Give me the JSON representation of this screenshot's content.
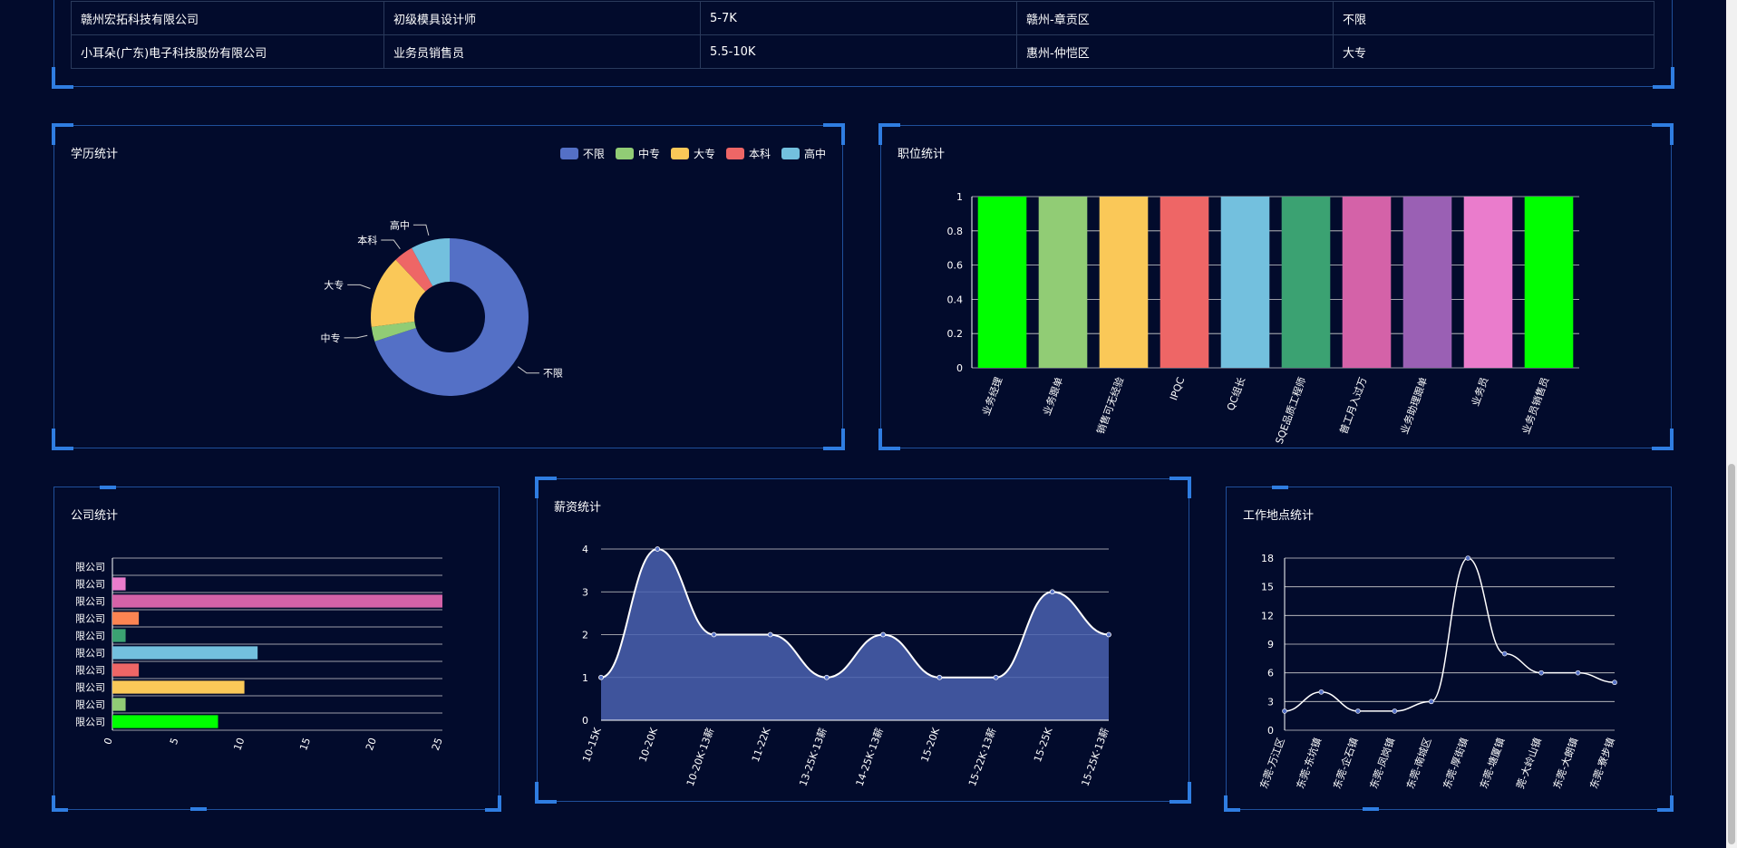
{
  "table": {
    "rows": [
      [
        "赣州宏拓科技有限公司",
        "初级模具设计师",
        "5-7K",
        "赣州-章贡区",
        "不限"
      ],
      [
        "小耳朵(广东)电子科技股份有限公司",
        "业务员销售员",
        "5.5-10K",
        "惠州-仲恺区",
        "大专"
      ]
    ]
  },
  "panels": {
    "education": "学历统计",
    "position": "职位统计",
    "company": "公司统计",
    "salary": "薪资统计",
    "location": "工作地点统计"
  },
  "colors": [
    "#5470c6",
    "#91cc75",
    "#fac858",
    "#ee6666",
    "#73c0de",
    "#3ba272",
    "#fc8452",
    "#9a60b4",
    "#ea7ccc",
    "#00ff00",
    "#d462a8"
  ],
  "chart_data": [
    {
      "type": "pie",
      "title": "学历统计",
      "categories": [
        "不限",
        "中专",
        "大专",
        "本科",
        "高中"
      ],
      "values": [
        70,
        3,
        15,
        4,
        8
      ],
      "colors": [
        "#5470c6",
        "#91cc75",
        "#fac858",
        "#ee6666",
        "#73c0de"
      ],
      "legend": "top-right"
    },
    {
      "type": "bar",
      "title": "职位统计",
      "categories": [
        "业务经理",
        "业务跟单",
        "销售可无经验",
        "IPQC",
        "QC组长",
        "SQE品质工程师",
        "普工月入过万",
        "业务助理跟单",
        "业务员",
        "业务员销售员"
      ],
      "values": [
        1,
        1,
        1,
        1,
        1,
        1,
        1,
        1,
        1,
        1
      ],
      "colors": [
        "#00ff00",
        "#91cc75",
        "#fac858",
        "#ee6666",
        "#73c0de",
        "#3ba272",
        "#d462a8",
        "#9a60b4",
        "#ea7ccc"
      ],
      "ylim": [
        0,
        1
      ],
      "yticks": [
        "0",
        "0.2",
        "0.4",
        "0.6",
        "0.8",
        "1"
      ]
    },
    {
      "type": "bar",
      "title": "公司统计",
      "orientation": "horizontal",
      "categories": [
        "有限公司",
        "有限公司",
        "有限公司",
        "有限公司",
        "有限公司",
        "有限公司",
        "有限公司",
        "有限公司",
        "有限公司",
        "有限公司"
      ],
      "category_labels": [
        "限公司",
        "限公司",
        "限公司",
        "限公司",
        "限公司",
        "限公司",
        "限公司",
        "限公司",
        "限公司",
        "限公司"
      ],
      "values": [
        8,
        1,
        10,
        2,
        11,
        1,
        2,
        25,
        1,
        0
      ],
      "colors": [
        "#00ff00",
        "#91cc75",
        "#fac858",
        "#ee6666",
        "#73c0de",
        "#3ba272",
        "#fc8452",
        "#d462a8",
        "#ea7ccc",
        "#5470c6"
      ],
      "xlim": [
        0,
        25
      ],
      "xticks": [
        "0",
        "5",
        "10",
        "15",
        "20",
        "25"
      ]
    },
    {
      "type": "area",
      "title": "薪资统计",
      "categories": [
        "10-15K",
        "10-20K",
        "10-20K·13薪",
        "11-22K",
        "13-25K·13薪",
        "14-25K·13薪",
        "15-20K",
        "15-22K·13薪",
        "15-25K",
        "15-25K·13薪"
      ],
      "values": [
        1,
        4,
        2,
        2,
        1,
        2,
        1,
        1,
        3,
        2
      ],
      "ylim": [
        0,
        4
      ],
      "yticks": [
        "0",
        "1",
        "2",
        "3",
        "4"
      ]
    },
    {
      "type": "line",
      "title": "工作地点统计",
      "categories": [
        "东莞-万江区",
        "东莞-东坑镇",
        "东莞-企石镇",
        "东莞-凤岗镇",
        "东莞-南城区",
        "东莞-厚街镇",
        "东莞-塘厦镇",
        "东莞-大岭山镇",
        "东莞-大朗镇",
        "东莞-寮步镇"
      ],
      "category_labels": [
        "东莞-万江区",
        "东莞-东坑镇",
        "东莞-企石镇",
        "东莞-凤岗镇",
        "东莞-南城区",
        "东莞-厚街镇",
        "东莞-塘厦镇",
        "莞-大岭山镇",
        "东莞-大朗镇",
        "东莞-寮步镇"
      ],
      "values": [
        2,
        4,
        2,
        2,
        3,
        18,
        8,
        6,
        6,
        5
      ],
      "ylim": [
        0,
        18
      ],
      "yticks": [
        "0",
        "3",
        "6",
        "9",
        "12",
        "15",
        "18"
      ]
    }
  ]
}
